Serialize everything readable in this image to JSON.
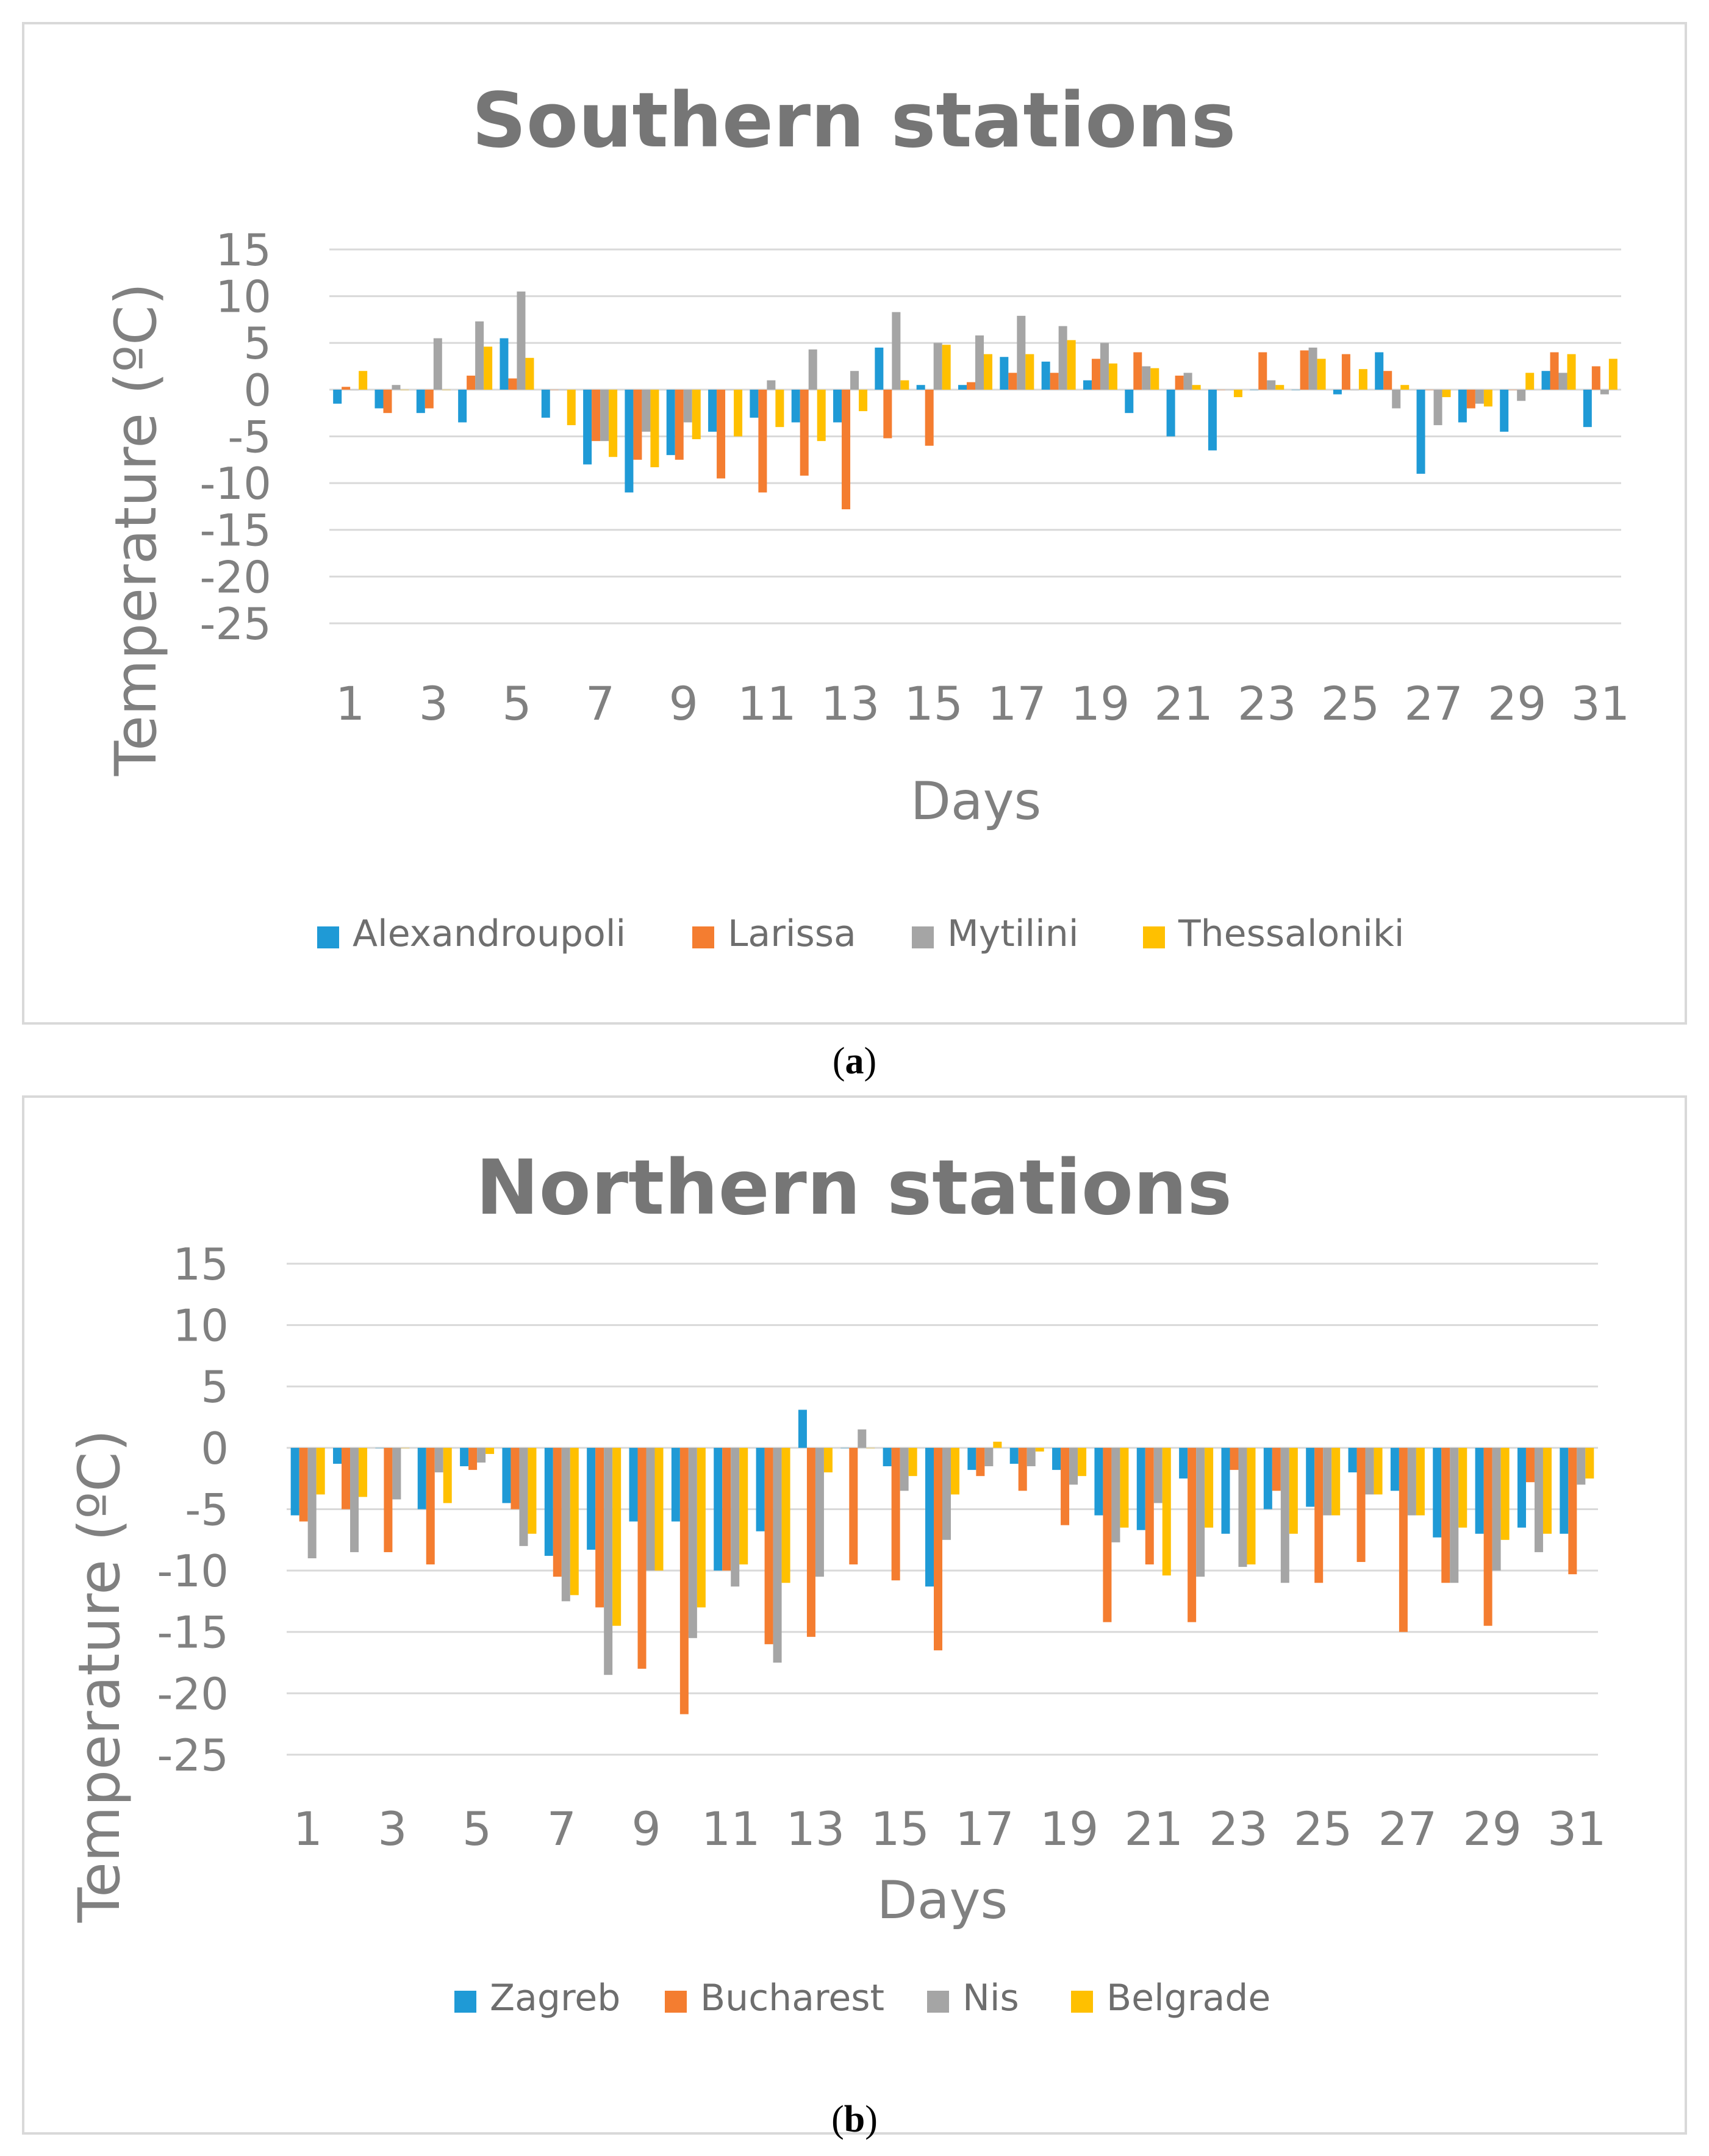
{
  "chart_data": [
    {
      "type": "bar",
      "caption_letter": "a",
      "title": "Southern stations",
      "xlabel": "Days",
      "ylabel": "Temperature (ºC)",
      "ylim": [
        -25,
        15
      ],
      "yticks": [
        15,
        10,
        5,
        0,
        -5,
        -10,
        -15,
        -20,
        -25
      ],
      "categories": [
        1,
        2,
        3,
        4,
        5,
        6,
        7,
        8,
        9,
        10,
        11,
        12,
        13,
        14,
        15,
        16,
        17,
        18,
        19,
        20,
        21,
        22,
        23,
        24,
        25,
        26,
        27,
        28,
        29,
        30,
        31
      ],
      "xtick_labels": [
        "1",
        "3",
        "5",
        "7",
        "9",
        "11",
        "13",
        "15",
        "17",
        "19",
        "21",
        "23",
        "25",
        "27",
        "29",
        "31"
      ],
      "legend_position": "bottom",
      "series": [
        {
          "name": "Alexandroupoli",
          "color": "#1f9ad6",
          "values": [
            -1.5,
            -2,
            -2.5,
            -3.5,
            5.5,
            -3,
            -8,
            -11,
            -7,
            -4.5,
            -3,
            -3.5,
            -3.5,
            4.5,
            0.5,
            0.5,
            3.5,
            3,
            1,
            -2.5,
            -5,
            -6.5,
            0,
            0,
            -0.5,
            4,
            -9,
            -3.5,
            -4.5,
            2,
            -4
          ]
        },
        {
          "name": "Larissa",
          "color": "#f47d30",
          "values": [
            0.3,
            -2.5,
            -2,
            1.5,
            1.2,
            0,
            -5.5,
            -7.5,
            -7.5,
            -9.5,
            -11,
            -9.2,
            -12.8,
            -5.2,
            -6,
            0.8,
            1.8,
            1.8,
            3.3,
            4,
            1.5,
            0,
            4,
            4.2,
            3.8,
            2,
            0,
            -2,
            0,
            4,
            2.5
          ]
        },
        {
          "name": "Mytilini",
          "color": "#a5a5a5",
          "values": [
            0,
            0.5,
            5.5,
            7.3,
            10.5,
            0,
            -5.5,
            -4.5,
            -3.5,
            0,
            1,
            4.3,
            2,
            8.3,
            5,
            5.8,
            7.9,
            6.8,
            5,
            2.5,
            1.8,
            0,
            1,
            4.5,
            0,
            -2,
            -3.8,
            -1.5,
            -1.2,
            1.8,
            -0.5
          ]
        },
        {
          "name": "Thessaloniki",
          "color": "#ffc000",
          "values": [
            2,
            0,
            0,
            4.6,
            3.4,
            -3.8,
            -7.2,
            -8.3,
            -5.3,
            -5,
            -4,
            -5.5,
            -2.3,
            1,
            4.8,
            3.8,
            3.8,
            5.3,
            2.8,
            2.3,
            0.5,
            -0.8,
            0.5,
            3.3,
            2.2,
            0.5,
            -0.8,
            -1.8,
            1.8,
            3.8,
            3.3
          ]
        }
      ]
    },
    {
      "type": "bar",
      "caption_letter": "b",
      "title": "Northern stations",
      "xlabel": "Days",
      "ylabel": "Temperature (ºC)",
      "ylim": [
        -25,
        15
      ],
      "yticks": [
        15,
        10,
        5,
        0,
        -5,
        -10,
        -15,
        -20,
        -25
      ],
      "categories": [
        1,
        2,
        3,
        4,
        5,
        6,
        7,
        8,
        9,
        10,
        11,
        12,
        13,
        14,
        15,
        16,
        17,
        18,
        19,
        20,
        21,
        22,
        23,
        24,
        25,
        26,
        27,
        28,
        29,
        30,
        31
      ],
      "xtick_labels": [
        "1",
        "3",
        "5",
        "7",
        "9",
        "11",
        "13",
        "15",
        "17",
        "19",
        "21",
        "23",
        "25",
        "27",
        "29",
        "31"
      ],
      "legend_position": "bottom",
      "series": [
        {
          "name": "Zagreb",
          "color": "#1f9ad6",
          "values": [
            -5.5,
            -1.3,
            0,
            -5,
            -1.5,
            -4.5,
            -8.8,
            -8.3,
            -6,
            -6,
            -10,
            -6.8,
            3.1,
            0,
            -1.5,
            -11.3,
            -1.8,
            -1.3,
            -1.8,
            -5.5,
            -6.7,
            -2.5,
            -7,
            -5,
            -4.8,
            -2,
            -3.5,
            -7.3,
            -7,
            -6.5,
            -7
          ]
        },
        {
          "name": "Bucharest",
          "color": "#f47d30",
          "values": [
            -6,
            -5,
            -8.5,
            -9.5,
            -1.8,
            -5,
            -10.5,
            -13,
            -18,
            -21.7,
            -10,
            -16,
            -15.4,
            -9.5,
            -10.8,
            -16.5,
            -2.3,
            -3.5,
            -6.3,
            -14.2,
            -9.5,
            -14.2,
            -1.8,
            -3.5,
            -11,
            -9.3,
            -15,
            -11,
            -14.5,
            -2.8,
            -10.3
          ]
        },
        {
          "name": "Nis",
          "color": "#a5a5a5",
          "values": [
            -9,
            -8.5,
            -4.2,
            -2,
            -1.2,
            -8,
            -12.5,
            -18.5,
            -10,
            -15.5,
            -11.3,
            -17.5,
            -10.5,
            1.5,
            -3.5,
            -7.5,
            -1.5,
            -1.5,
            -3,
            -7.7,
            -4.5,
            -10.5,
            -9.7,
            -11,
            -5.5,
            -3.8,
            -5.5,
            -11,
            -10,
            -8.5,
            -3
          ]
        },
        {
          "name": "Belgrade",
          "color": "#ffc000",
          "values": [
            -3.8,
            -4,
            0,
            -4.5,
            -0.5,
            -7,
            -12,
            -14.5,
            -10,
            -13,
            -9.5,
            -11,
            -2,
            0,
            -2.3,
            -3.8,
            0.5,
            -0.3,
            -2.3,
            -6.5,
            -10.4,
            -6.5,
            -9.5,
            -7,
            -5.5,
            -3.8,
            -5.5,
            -6.5,
            -7.5,
            -7,
            -2.5
          ]
        }
      ]
    }
  ]
}
